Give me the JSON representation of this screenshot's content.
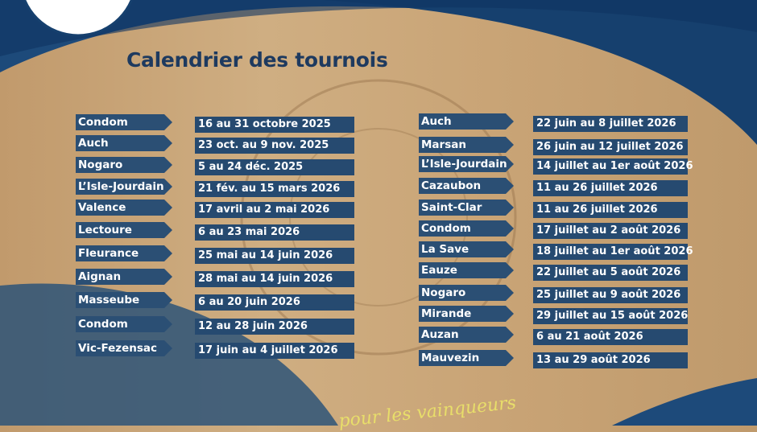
{
  "title": "Calendrier des tournois",
  "left_column": [
    {
      "place": "Condom",
      "dates": "16 au 31 octobre 2025"
    },
    {
      "place": "Auch",
      "dates": "23 oct. au 9 nov. 2025"
    },
    {
      "place": "Nogaro",
      "dates": "5 au 24 déc. 2025"
    },
    {
      "place": "L’Isle-Jourdain",
      "dates": "21 fév. au 15 mars 2026"
    },
    {
      "place": "Valence",
      "dates": "17 avril au 2 mai 2026"
    },
    {
      "place": "Lectoure",
      "dates": "6 au 23 mai 2026"
    },
    {
      "place": "Fleurance",
      "dates": "25 mai au 14 juin 2026"
    },
    {
      "place": "Aignan",
      "dates": "28 mai au 14 juin 2026"
    },
    {
      "place": "Masseube",
      "dates": "6 au 20 juin 2026"
    },
    {
      "place": "Condom",
      "dates": "12 au 28 juin 2026"
    },
    {
      "place": "Vic-Fezensac",
      "dates": "17 juin au 4 juillet 2026"
    }
  ],
  "right_column": [
    {
      "place": "Auch",
      "dates": "22 juin au 8 juillet 2026"
    },
    {
      "place": "Marsan",
      "dates": "26 juin au 12 juillet 2026"
    },
    {
      "place": "L’Isle-Jourdain",
      "dates": "14 juillet au 1er août 2026"
    },
    {
      "place": "Cazaubon",
      "dates": "11 au 26 juillet 2026"
    },
    {
      "place": "Saint-Clar",
      "dates": "11 au 26 juillet 2026"
    },
    {
      "place": "Condom",
      "dates": "17 juillet au 2 août 2026"
    },
    {
      "place": "La Save",
      "dates": "18 juillet au 1er août 2026"
    },
    {
      "place": "Eauze",
      "dates": "22 juillet au 5 août 2026"
    },
    {
      "place": "Nogaro",
      "dates": "25 juillet au 9 août 2026"
    },
    {
      "place": "Mirande",
      "dates": "29 juillet au 15 août 2026"
    },
    {
      "place": "Auzan",
      "dates": "6 au 21 août 2026"
    },
    {
      "place": "Mauvezin",
      "dates": "13 au 29 août 2026"
    }
  ],
  "footer_text": "pour les vainqueurs",
  "colors": {
    "primary_blue": "#1e3a5f",
    "tag_blue": "#2b4f74",
    "wood": "#c9a476",
    "footer_yellow": "#e8de6a"
  }
}
